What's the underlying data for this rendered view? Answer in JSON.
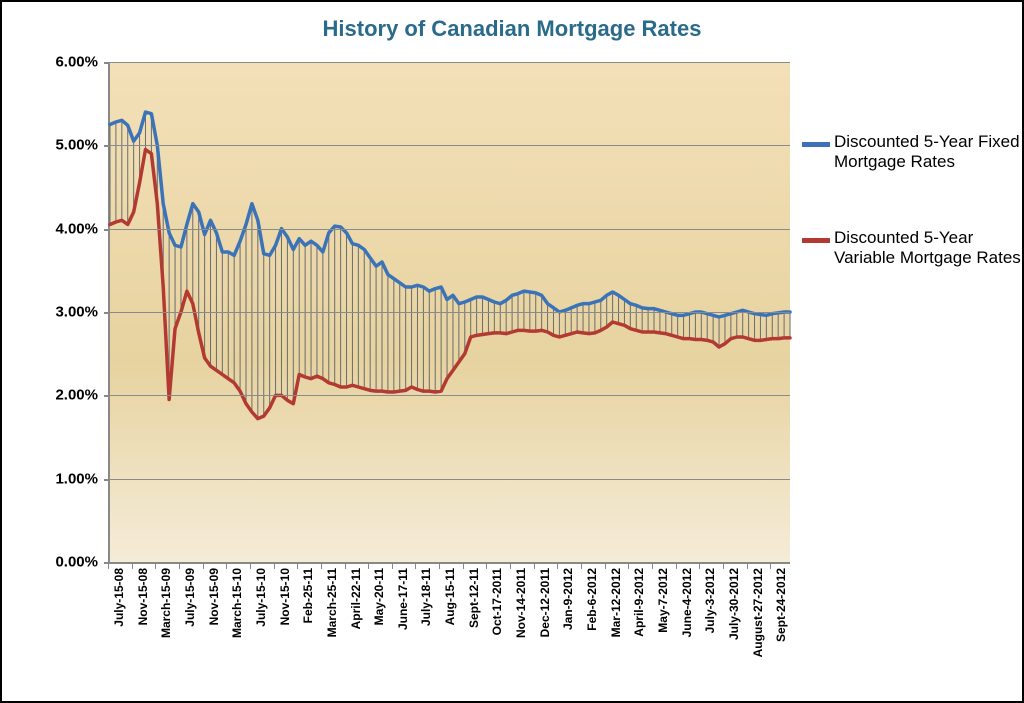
{
  "title": {
    "text": "History of Canadian Mortgage Rates",
    "color": "#2a6a8a",
    "fontsize": 22
  },
  "chart": {
    "type": "line-area",
    "background_gradient": [
      "#f3e0b8",
      "#e7d3a0",
      "#f5ecd8"
    ],
    "grid_color": "#8a8a8a",
    "axis_color": "#888888",
    "ylabel_format": "percent",
    "ylim": [
      0,
      6
    ],
    "ytick_step": 1,
    "yticks": [
      "0.00%",
      "1.00%",
      "2.00%",
      "3.00%",
      "4.00%",
      "5.00%",
      "6.00%"
    ],
    "tick_font": {
      "size": 15,
      "weight": "bold",
      "color": "#000000"
    },
    "x_labels": [
      "July-15-08",
      "Nov-15-08",
      "March-15-09",
      "July-15-09",
      "Nov-15-09",
      "March-15-10",
      "July-15-10",
      "Nov-15-10",
      "Feb-25-11",
      "March-25-11",
      "April-22-11",
      "May-20-11",
      "June-17-11",
      "July-18-11",
      "Aug-15-11",
      "Sept-12-11",
      "Oct-17-2011",
      "Nov-14-2011",
      "Dec-12-2011",
      "Jan-9-2012",
      "Feb-6-2012",
      "Mar-12-2012",
      "April-9-2012",
      "May-7-2012",
      "June-4-2012",
      "July-3-2012",
      "July-30-2012",
      "August-27-2012",
      "Sept-24-2012"
    ],
    "x_label_font": {
      "size": 12,
      "weight": "bold",
      "color": "#000000",
      "rotation": -90
    },
    "n_points": 116,
    "drop_lines": {
      "enabled": true,
      "color": "#6b6b6b",
      "width": 1
    },
    "series": [
      {
        "name": "Discounted 5-Year Fixed Mortgage Rates",
        "color": "#3b73b9",
        "line_width": 3.5,
        "values": [
          5.25,
          5.28,
          5.3,
          5.24,
          5.05,
          5.15,
          5.4,
          5.38,
          5.0,
          4.3,
          3.95,
          3.8,
          3.78,
          4.05,
          4.3,
          4.2,
          3.93,
          4.1,
          3.95,
          3.72,
          3.72,
          3.68,
          3.85,
          4.05,
          4.3,
          4.1,
          3.7,
          3.68,
          3.8,
          4.0,
          3.9,
          3.75,
          3.88,
          3.8,
          3.85,
          3.8,
          3.72,
          3.95,
          4.03,
          4.02,
          3.95,
          3.82,
          3.8,
          3.75,
          3.65,
          3.55,
          3.6,
          3.45,
          3.4,
          3.35,
          3.3,
          3.3,
          3.32,
          3.3,
          3.25,
          3.28,
          3.3,
          3.15,
          3.2,
          3.1,
          3.12,
          3.15,
          3.18,
          3.18,
          3.15,
          3.12,
          3.1,
          3.14,
          3.2,
          3.22,
          3.25,
          3.24,
          3.23,
          3.2,
          3.1,
          3.05,
          3.0,
          3.02,
          3.05,
          3.08,
          3.1,
          3.1,
          3.12,
          3.14,
          3.2,
          3.24,
          3.2,
          3.15,
          3.1,
          3.08,
          3.05,
          3.04,
          3.04,
          3.02,
          3.0,
          2.98,
          2.96,
          2.96,
          2.98,
          3.0,
          3.0,
          2.98,
          2.96,
          2.94,
          2.96,
          2.98,
          3.0,
          3.02,
          3.0,
          2.98,
          2.97,
          2.96,
          2.98,
          2.99,
          3.0,
          3.0
        ]
      },
      {
        "name": "Discounted 5-Year Variable Mortgage Rates",
        "color": "#b23a33",
        "line_width": 3.5,
        "values": [
          4.05,
          4.08,
          4.1,
          4.05,
          4.2,
          4.55,
          4.95,
          4.9,
          4.3,
          3.3,
          1.95,
          2.8,
          3.0,
          3.25,
          3.1,
          2.75,
          2.45,
          2.35,
          2.3,
          2.25,
          2.2,
          2.15,
          2.05,
          1.9,
          1.8,
          1.72,
          1.75,
          1.85,
          2.0,
          2.0,
          1.94,
          1.9,
          2.25,
          2.22,
          2.2,
          2.23,
          2.2,
          2.15,
          2.13,
          2.1,
          2.1,
          2.12,
          2.1,
          2.08,
          2.06,
          2.05,
          2.05,
          2.04,
          2.04,
          2.05,
          2.06,
          2.1,
          2.07,
          2.05,
          2.05,
          2.04,
          2.05,
          2.2,
          2.3,
          2.4,
          2.5,
          2.7,
          2.72,
          2.73,
          2.74,
          2.75,
          2.75,
          2.74,
          2.76,
          2.78,
          2.78,
          2.77,
          2.77,
          2.78,
          2.76,
          2.72,
          2.7,
          2.72,
          2.74,
          2.76,
          2.75,
          2.74,
          2.75,
          2.78,
          2.82,
          2.88,
          2.86,
          2.84,
          2.8,
          2.78,
          2.76,
          2.76,
          2.76,
          2.75,
          2.74,
          2.72,
          2.7,
          2.68,
          2.68,
          2.67,
          2.67,
          2.66,
          2.64,
          2.58,
          2.62,
          2.68,
          2.7,
          2.7,
          2.68,
          2.66,
          2.66,
          2.67,
          2.68,
          2.68,
          2.69,
          2.69
        ]
      }
    ]
  },
  "legend": {
    "items": [
      {
        "label": "Discounted 5-Year Fixed Mortgage Rates",
        "color": "#3b73b9"
      },
      {
        "label": "Discounted 5-Year Variable Mortgage Rates",
        "color": "#b23a33"
      }
    ],
    "font": {
      "size": 17,
      "color": "#000000"
    },
    "swatch_thickness": 5
  }
}
